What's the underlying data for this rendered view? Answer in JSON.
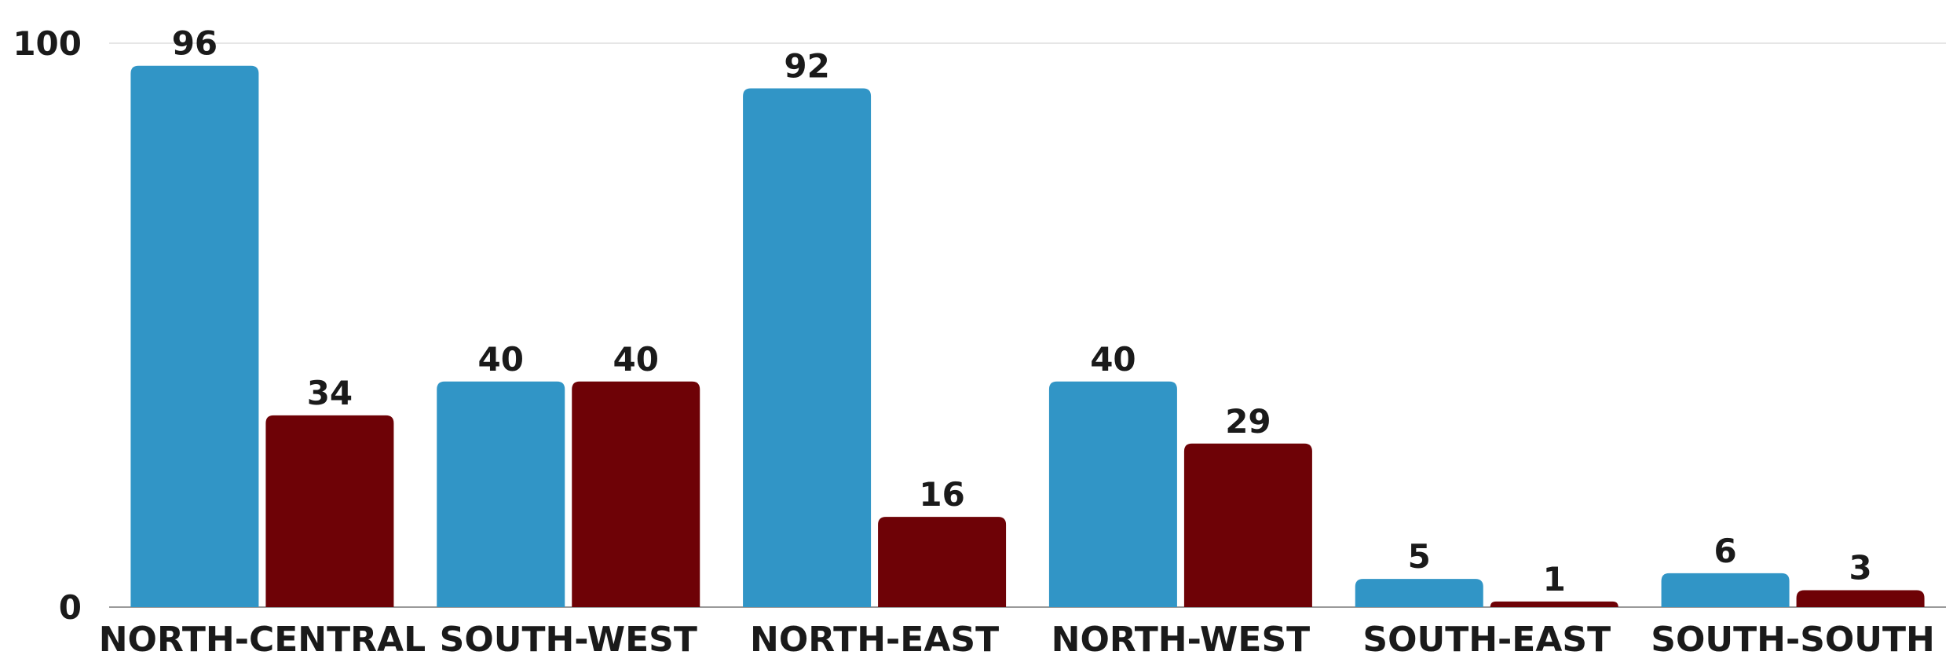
{
  "chart_data": {
    "type": "bar",
    "title": "",
    "xlabel": "",
    "ylabel": "",
    "ylim": [
      0,
      100
    ],
    "yticks": [
      0,
      100
    ],
    "grid": true,
    "legend": "none",
    "categories": [
      "NORTH-CENTRAL",
      "SOUTH-WEST",
      "NORTH-EAST",
      "NORTH-WEST",
      "SOUTH-EAST",
      "SOUTH-SOUTH"
    ],
    "series": [
      {
        "values": [
          96,
          40,
          92,
          40,
          5,
          6
        ],
        "color": "#3195c6"
      },
      {
        "values": [
          34,
          40,
          16,
          29,
          1,
          3
        ],
        "color": "#6e0206"
      }
    ]
  }
}
